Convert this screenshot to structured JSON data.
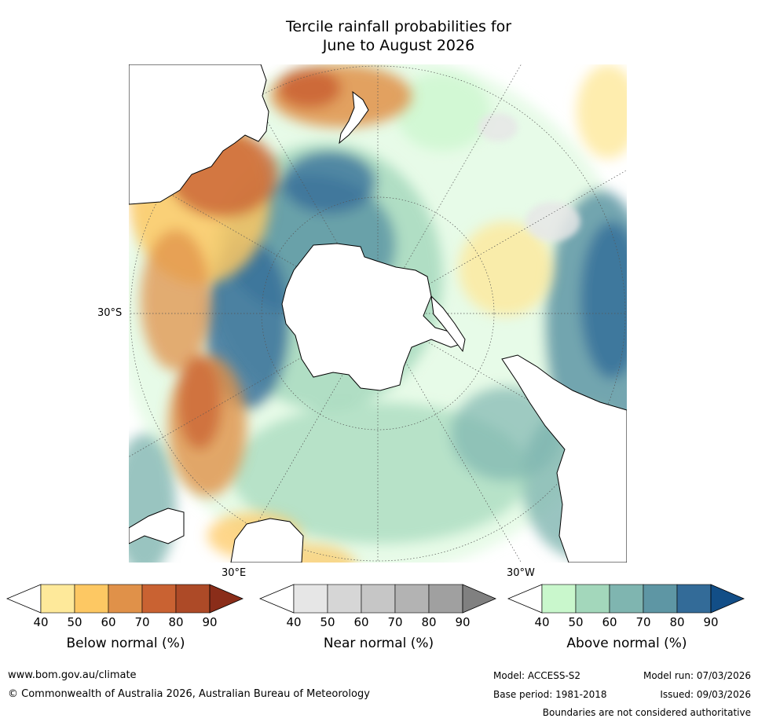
{
  "title_line1": "Tercile rainfall probabilities for",
  "title_line2": "June to August 2026",
  "map_labels": {
    "lat": "30°S",
    "lon_east": "30°E",
    "lon_west": "30°W"
  },
  "colors": {
    "below": [
      "#fee99a",
      "#fdc863",
      "#e09149",
      "#c96232",
      "#ad4a27",
      "#8a2d19"
    ],
    "near": [
      "#e6e6e6",
      "#d6d6d6",
      "#c6c6c6",
      "#b3b3b3",
      "#a0a0a0",
      "#808080"
    ],
    "above": [
      "#c9f7cc",
      "#a3d7bb",
      "#7fb5b0",
      "#5e96a4",
      "#336b98",
      "#124e87"
    ],
    "land_outline": "#000000"
  },
  "colorbars": [
    {
      "label": "Below normal (%)",
      "ticks": [
        "40",
        "50",
        "60",
        "70",
        "80",
        "90"
      ]
    },
    {
      "label": "Near normal (%)",
      "ticks": [
        "40",
        "50",
        "60",
        "70",
        "80",
        "90"
      ]
    },
    {
      "label": "Above normal (%)",
      "ticks": [
        "40",
        "50",
        "60",
        "70",
        "80",
        "90"
      ]
    }
  ],
  "footer": {
    "website": "www.bom.gov.au/climate",
    "copyright": "© Commonwealth of Australia 2026, Australian Bureau of Meteorology",
    "model": "Model: ACCESS-S2",
    "model_run": "Model run: 07/03/2026",
    "base_period": "Base period: 1981-2018",
    "issued": "Issued: 09/03/2026",
    "disclaimer": "Boundaries are not considered authoritative"
  }
}
